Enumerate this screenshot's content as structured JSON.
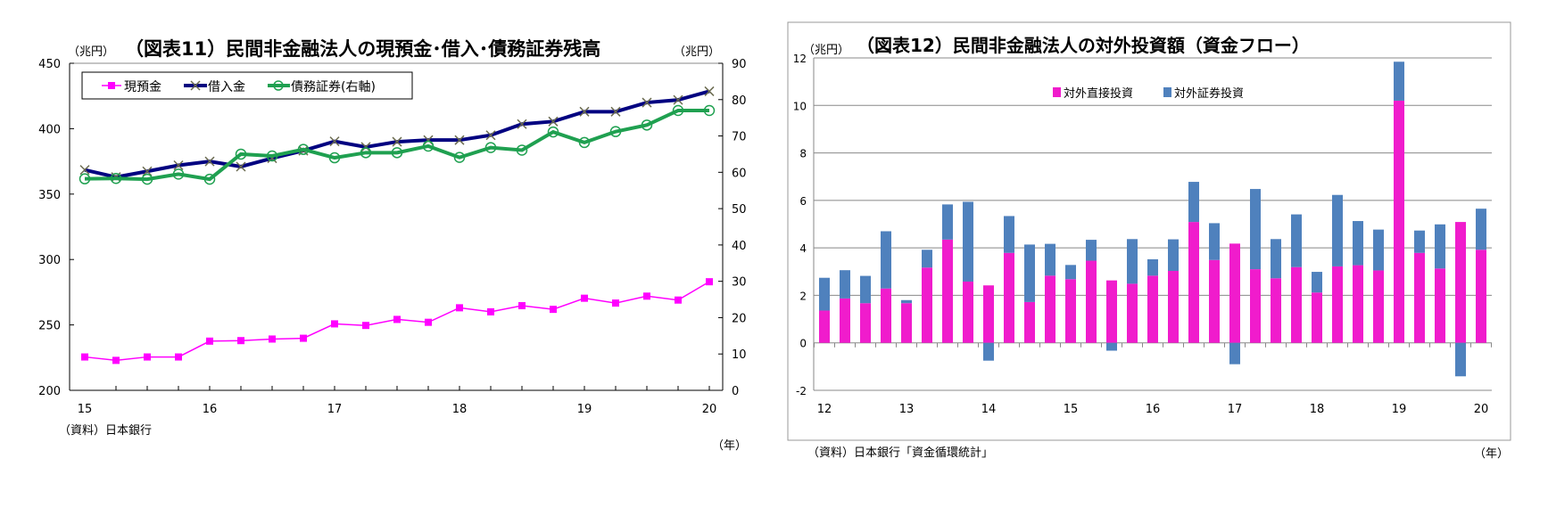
{
  "chart_data": [
    {
      "type": "line",
      "title": "（図表11）民間非金融法人の現預金･借入･債務証券残高",
      "ylabel_left": "（兆円）",
      "ylabel_right": "（兆円）",
      "xlabel": "（年）",
      "source": "（資料）日本銀行",
      "x_tick_labels": [
        "15",
        "16",
        "17",
        "18",
        "19",
        "20"
      ],
      "ylim_left": [
        200,
        450
      ],
      "yticks_left": [
        200,
        250,
        300,
        350,
        400,
        450
      ],
      "ylim_right": [
        0,
        90
      ],
      "yticks_right": [
        0,
        10,
        20,
        30,
        40,
        50,
        60,
        70,
        80,
        90
      ],
      "legend_position": "top-left",
      "series": [
        {
          "name": "現預金",
          "axis": "left",
          "color": "#ff00ff",
          "values": [
            225.5,
            222.9,
            225.5,
            225.5,
            237.6,
            238.0,
            239.2,
            239.8,
            250.8,
            249.6,
            254.2,
            252.0,
            263.1,
            260.0,
            264.7,
            261.9,
            270.4,
            266.7,
            272.0,
            269.0,
            283.0
          ]
        },
        {
          "name": "借入金",
          "axis": "left",
          "color": "#000080",
          "values": [
            368.5,
            363.0,
            367.4,
            372.0,
            375.0,
            371.0,
            377.4,
            383.2,
            390.3,
            386.0,
            390.0,
            391.3,
            391.3,
            395.0,
            403.5,
            405.5,
            413.0,
            413.0,
            420.0,
            422.0,
            428.6
          ]
        },
        {
          "name": "債務証券(右軸)",
          "axis": "right",
          "color": "#1fa050",
          "values": [
            58.2,
            58.3,
            58.1,
            59.5,
            58.1,
            65.0,
            64.5,
            66.3,
            64.0,
            65.4,
            65.4,
            67.2,
            64.1,
            66.8,
            66.1,
            71.1,
            68.2,
            71.2,
            73.0,
            77.0,
            77.0
          ]
        }
      ]
    },
    {
      "type": "bar",
      "stacked": true,
      "title": "（図表12）民間非金融法人の対外投資額（資金フロー）",
      "ylabel": "（兆円）",
      "xlabel": "（年）",
      "source": "（資料）日本銀行「資金循環統計」",
      "x_tick_labels": [
        "12",
        "13",
        "14",
        "15",
        "16",
        "17",
        "18",
        "19",
        "20"
      ],
      "ylim": [
        -2,
        12
      ],
      "yticks": [
        -2,
        0,
        2,
        4,
        6,
        8,
        10,
        12
      ],
      "legend_position": "top-center",
      "series": [
        {
          "name": "対外直接投資",
          "color": "#f01ccc",
          "values": [
            1.36,
            1.87,
            1.67,
            2.29,
            1.67,
            3.17,
            4.35,
            2.58,
            2.42,
            3.79,
            1.72,
            2.83,
            2.68,
            3.46,
            2.63,
            2.49,
            2.83,
            3.03,
            5.09,
            3.49,
            4.18,
            3.1,
            2.72,
            3.19,
            2.12,
            3.22,
            3.27,
            3.05,
            10.2,
            3.79,
            3.13,
            5.09,
            3.92
          ]
        },
        {
          "name": "対外証券投資",
          "color": "#4f81bd",
          "values": [
            1.38,
            1.19,
            1.15,
            2.41,
            0.13,
            0.75,
            1.48,
            3.36,
            -0.75,
            1.55,
            2.42,
            1.34,
            0.6,
            0.88,
            -0.33,
            1.88,
            0.69,
            1.33,
            1.69,
            1.55,
            -0.9,
            3.38,
            1.65,
            2.22,
            0.87,
            3.01,
            1.86,
            1.72,
            1.64,
            0.94,
            1.86,
            -1.41,
            1.73
          ]
        }
      ]
    }
  ]
}
